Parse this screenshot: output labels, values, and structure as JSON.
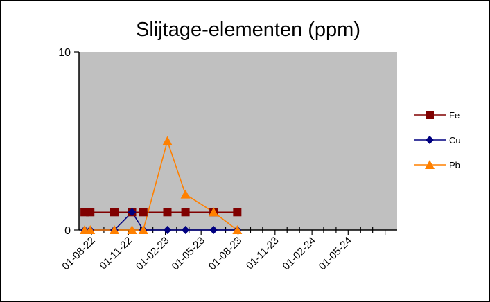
{
  "chart_data": {
    "type": "line",
    "title": "Slijtage-elementen (ppm)",
    "xlabel": "",
    "ylabel": "",
    "ylim": [
      0,
      10
    ],
    "yticks": [
      "0",
      "10"
    ],
    "xticks": [
      "01-08-22",
      "01-11-22",
      "01-02-23",
      "01-05-23",
      "01-08-23",
      "01-11-23",
      "01-02-24",
      "01-05-24"
    ],
    "xlim": [
      "2022-07-01",
      "2024-08-31"
    ],
    "x": [
      "2022-07-15",
      "2022-07-29",
      "2022-09-27",
      "2022-11-10",
      "2022-12-08",
      "2023-02-06",
      "2023-03-23",
      "2023-06-01",
      "2023-07-30"
    ],
    "grid": false,
    "plot_background": "#c0c0c0",
    "legend_position": "right",
    "series": [
      {
        "name": "Fe",
        "color": "#800000",
        "marker": "square",
        "values": [
          1,
          1,
          1,
          1,
          1,
          1,
          1,
          1,
          1
        ]
      },
      {
        "name": "Cu",
        "color": "#000080",
        "marker": "diamond",
        "values": [
          0,
          0,
          0,
          1,
          0,
          0,
          0,
          0,
          0
        ]
      },
      {
        "name": "Pb",
        "color": "#ff8000",
        "marker": "triangle",
        "values": [
          0,
          0,
          0,
          0,
          0,
          5,
          2,
          1,
          0
        ]
      }
    ]
  }
}
